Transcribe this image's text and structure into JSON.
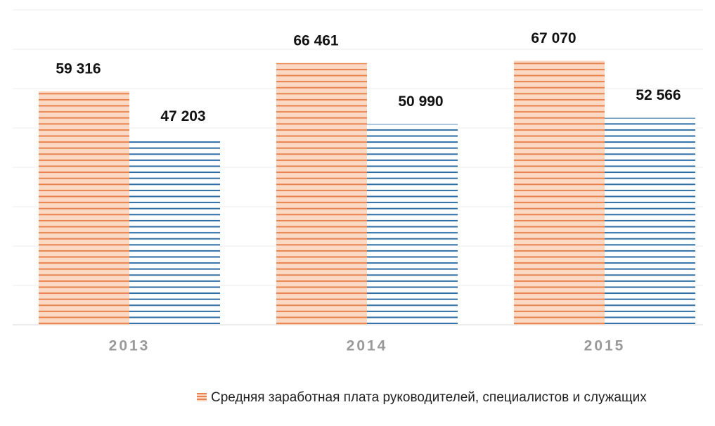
{
  "chart_data": {
    "type": "bar",
    "categories": [
      "2013",
      "2014",
      "2015"
    ],
    "series": [
      {
        "name": "Средняя заработная плата руководителей, специалистов и служащих",
        "color": "#e8834f",
        "values": [
          59316,
          66461,
          67070
        ],
        "value_labels": [
          "59 316",
          "66 461",
          "67 070"
        ]
      },
      {
        "color": "#2e6da4",
        "values": [
          47203,
          50990,
          52566
        ],
        "value_labels": [
          "47 203",
          "50 990",
          "52 566"
        ]
      }
    ],
    "ylim": [
      0,
      80000
    ],
    "yticks": [
      0,
      10000,
      20000,
      30000,
      40000,
      50000,
      60000,
      70000,
      80000
    ],
    "grid": true,
    "legend": "bottom"
  }
}
